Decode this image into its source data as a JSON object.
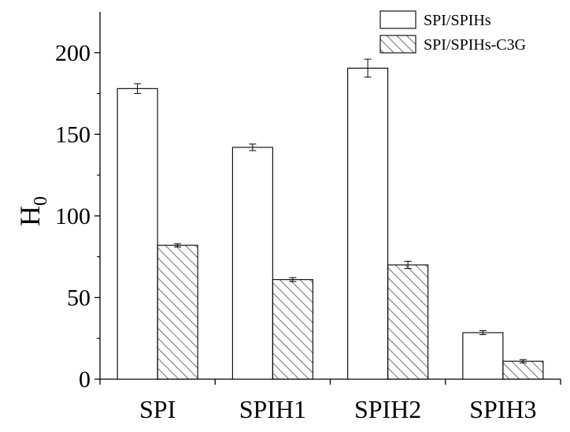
{
  "chart_data": {
    "type": "bar",
    "categories": [
      "SPI",
      "SPIH1",
      "SPIH2",
      "SPIH3"
    ],
    "series": [
      {
        "name": "SPI/SPIHs",
        "values": [
          178,
          142,
          190.5,
          28.5
        ],
        "errors": [
          3,
          2,
          5.5,
          1.2
        ],
        "fill": "none"
      },
      {
        "name": "SPI/SPIHs-C3G",
        "values": [
          82,
          61,
          70,
          11
        ],
        "errors": [
          1,
          1.2,
          2.2,
          1
        ],
        "fill": "hatch"
      }
    ],
    "ylabel": "H",
    "ylabel_subscript": "0",
    "xlabel": "",
    "ylim": [
      0,
      225
    ],
    "yticks": [
      0,
      50,
      100,
      150,
      200
    ],
    "yticks_minor": [
      25,
      75,
      125,
      175
    ],
    "grid": false,
    "legend_position": "top-right",
    "bar_stroke_color": "#000000",
    "hatch_color": "#333333"
  }
}
